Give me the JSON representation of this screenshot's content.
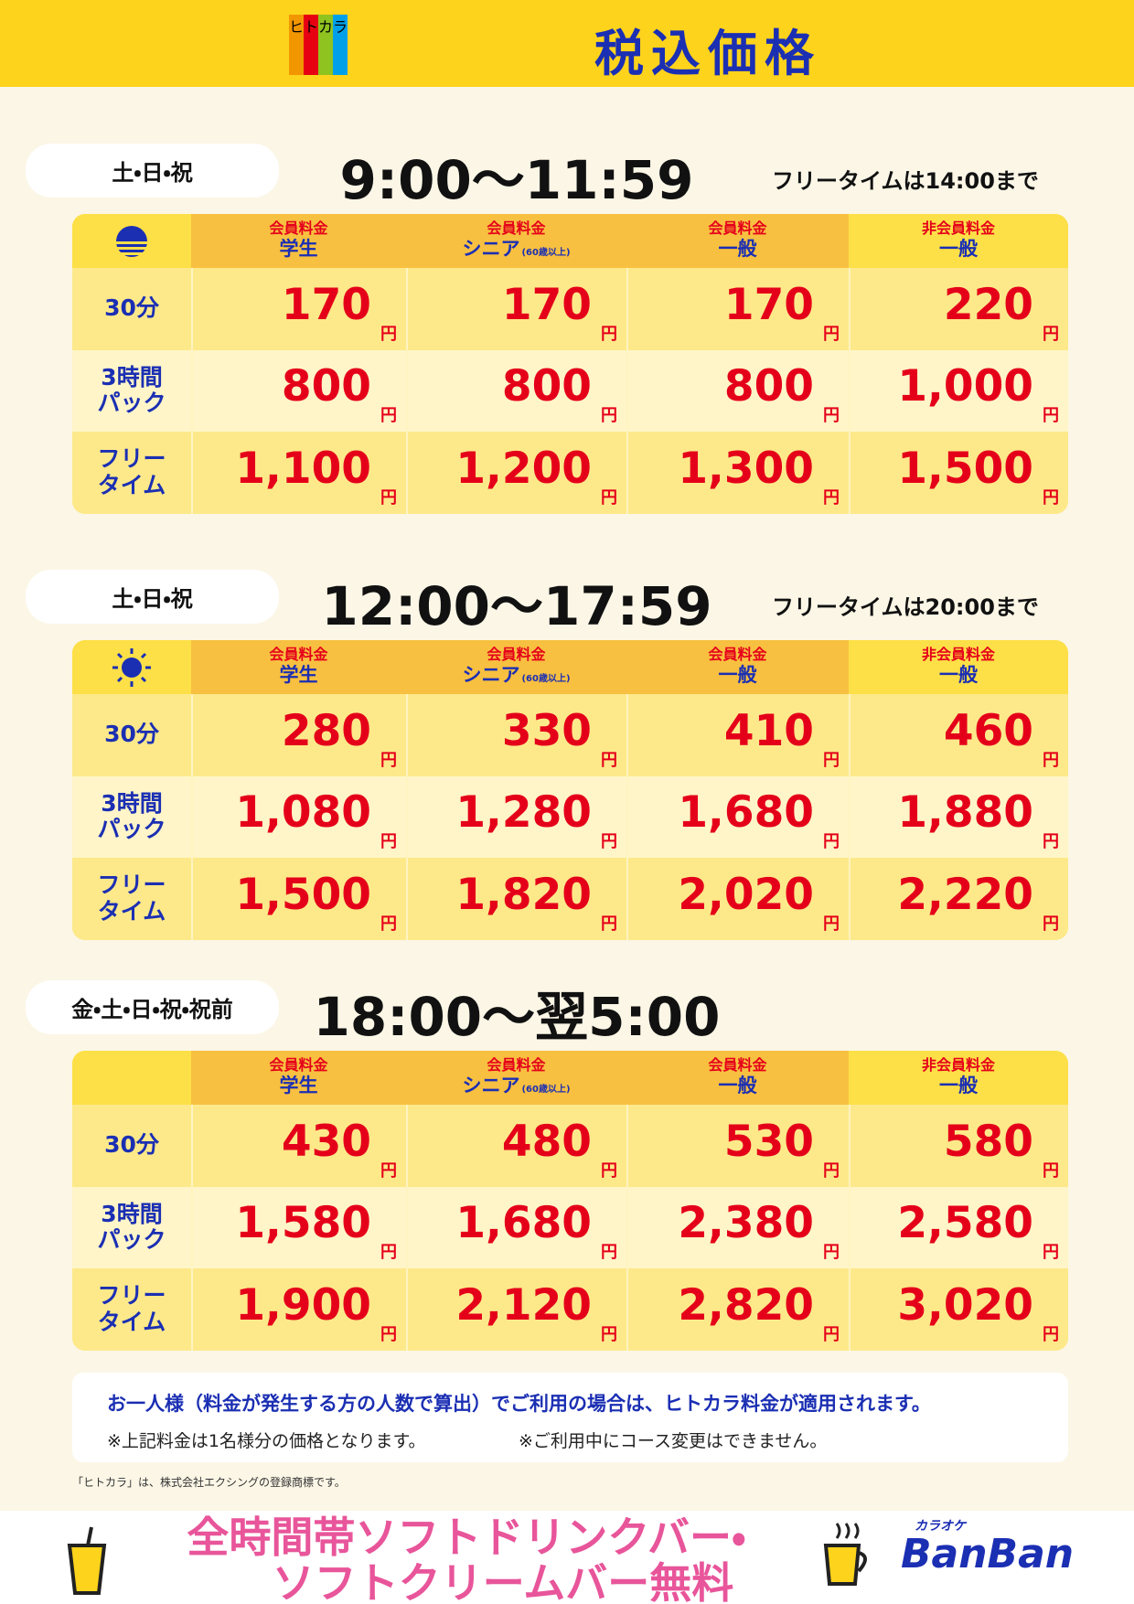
{
  "header": {
    "logo": [
      "ヒ",
      "ト",
      "カ",
      "ラ"
    ],
    "title": "税込価格"
  },
  "unit": "円",
  "sections": [
    {
      "days": "土・日・祝",
      "time": "9:00〜11:59",
      "note": "フリータイムは14:00まで",
      "columns": [
        {
          "top": "会員料金",
          "main": "学生"
        },
        {
          "top": "会員料金",
          "main": "シニア",
          "sub": "(60歳以上)"
        },
        {
          "top": "会員料金",
          "main": "一般"
        },
        {
          "top": "非会員料金",
          "main": "一般"
        }
      ],
      "rows": [
        {
          "label": [
            "30分"
          ],
          "prices": [
            "170",
            "170",
            "170",
            "220"
          ]
        },
        {
          "label": [
            "3時間",
            "パック"
          ],
          "prices": [
            "800",
            "800",
            "800",
            "1,000"
          ]
        },
        {
          "label": [
            "フリー",
            "タイム"
          ],
          "prices": [
            "1,100",
            "1,200",
            "1,300",
            "1,500"
          ]
        }
      ]
    },
    {
      "days": "土・日・祝",
      "time": "12:00〜17:59",
      "note": "フリータイムは20:00まで",
      "columns": [
        {
          "top": "会員料金",
          "main": "学生"
        },
        {
          "top": "会員料金",
          "main": "シニア",
          "sub": "(60歳以上)"
        },
        {
          "top": "会員料金",
          "main": "一般"
        },
        {
          "top": "非会員料金",
          "main": "一般"
        }
      ],
      "rows": [
        {
          "label": [
            "30分"
          ],
          "prices": [
            "280",
            "330",
            "410",
            "460"
          ]
        },
        {
          "label": [
            "3時間",
            "パック"
          ],
          "prices": [
            "1,080",
            "1,280",
            "1,680",
            "1,880"
          ]
        },
        {
          "label": [
            "フリー",
            "タイム"
          ],
          "prices": [
            "1,500",
            "1,820",
            "2,020",
            "2,220"
          ]
        }
      ]
    },
    {
      "days": "金・土・日・祝・祝前",
      "time": "18:00〜翌5:00",
      "columns": [
        {
          "top": "会員料金",
          "main": "学生"
        },
        {
          "top": "会員料金",
          "main": "シニア",
          "sub": "(60歳以上)"
        },
        {
          "top": "会員料金",
          "main": "一般"
        },
        {
          "top": "非会員料金",
          "main": "一般"
        }
      ],
      "rows": [
        {
          "label": [
            "30分"
          ],
          "prices": [
            "430",
            "480",
            "530",
            "580"
          ]
        },
        {
          "label": [
            "3時間",
            "パック"
          ],
          "prices": [
            "1,580",
            "1,680",
            "2,380",
            "2,580"
          ]
        },
        {
          "label": [
            "フリー",
            "タイム"
          ],
          "prices": [
            "1,900",
            "2,120",
            "2,820",
            "3,020"
          ]
        }
      ]
    }
  ],
  "notes": {
    "main": "お一人様（料金が発生する方の人数で算出）でご利用の場合は、ヒトカラ料金が適用されます。",
    "sub": [
      "※上記料金は1名様分の価格となります。",
      "※ご利用中にコース変更はできません。"
    ]
  },
  "trademark": "「ヒトカラ」は、株式会社エクシングの登録商標です。",
  "banner": {
    "lines": [
      "全時間帯ソフトドリンクバー・",
      "ソフトクリームバー無料"
    ],
    "brand_small": "カラオケ",
    "brand": "BanBan"
  }
}
